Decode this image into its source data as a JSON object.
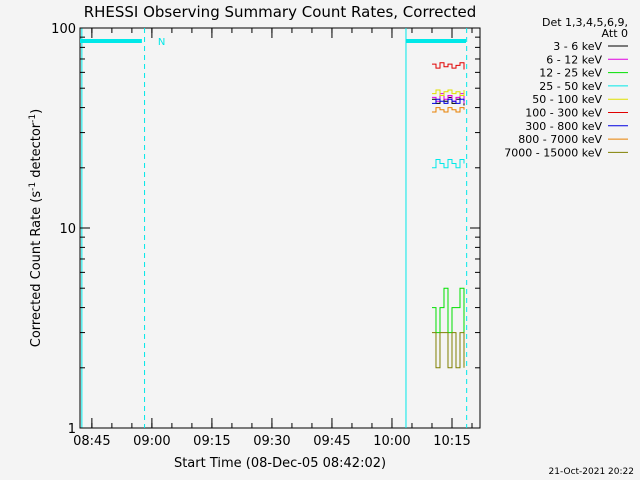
{
  "chart_data": {
    "type": "line",
    "title": "RHESSI Observing Summary Count Rates, Corrected",
    "xlabel": "Start Time (08-Dec-05 08:42:02)",
    "ylabel_main": "Corrected Count Rate (s",
    "ylabel_sup1": "-1",
    "ylabel_mid": " detector",
    "ylabel_sup2": "-1",
    "ylabel_end": ")",
    "yscale": "log",
    "ylim": [
      1,
      100
    ],
    "xlim": [
      "08:42:02",
      "10:22:00"
    ],
    "x_ticks": [
      "08:45",
      "09:00",
      "09:15",
      "09:30",
      "09:45",
      "10:00",
      "10:15"
    ],
    "y_ticks": [
      "1",
      "10",
      "100"
    ],
    "legend_header": [
      "Det 1,3,4,5,6,9,",
      "Att 0"
    ],
    "legend_position": "right",
    "series": [
      {
        "name": "3 - 6 keV",
        "color": "#000000",
        "x": [
          "10:10",
          "10:11",
          "10:12",
          "10:13",
          "10:14",
          "10:15",
          "10:16",
          "10:17",
          "10:18"
        ],
        "y": [
          44,
          42,
          46,
          43,
          45,
          42,
          44,
          46,
          41
        ]
      },
      {
        "name": "6 - 12 keV",
        "color": "#e000e0",
        "x": [
          "10:10",
          "10:11",
          "10:12",
          "10:13",
          "10:14",
          "10:15",
          "10:16",
          "10:17",
          "10:18"
        ],
        "y": [
          45,
          43,
          47,
          44,
          46,
          43,
          45,
          47,
          42
        ]
      },
      {
        "name": "12 - 25 keV",
        "color": "#00e000",
        "x": [
          "10:10",
          "10:11",
          "10:12",
          "10:13",
          "10:14",
          "10:15",
          "10:16",
          "10:17",
          "10:18"
        ],
        "y": [
          4,
          3,
          4,
          5,
          3,
          4,
          4,
          5,
          3
        ]
      },
      {
        "name": "25 - 50 keV",
        "color": "#00e8e8",
        "x": [
          "10:10",
          "10:11",
          "10:12",
          "10:13",
          "10:14",
          "10:15",
          "10:16",
          "10:17",
          "10:18"
        ],
        "y": [
          20,
          22,
          21,
          20,
          22,
          21,
          20,
          22,
          21
        ]
      },
      {
        "name": "50 - 100 keV",
        "color": "#e0e000",
        "x": [
          "10:10",
          "10:11",
          "10:12",
          "10:13",
          "10:14",
          "10:15",
          "10:16",
          "10:17",
          "10:18"
        ],
        "y": [
          47,
          49,
          46,
          48,
          49,
          47,
          48,
          46,
          49
        ]
      },
      {
        "name": "100 - 300 keV",
        "color": "#e00000",
        "x": [
          "10:10",
          "10:11",
          "10:12",
          "10:13",
          "10:14",
          "10:15",
          "10:16",
          "10:17",
          "10:18"
        ],
        "y": [
          66,
          63,
          67,
          64,
          66,
          63,
          65,
          67,
          62
        ]
      },
      {
        "name": "300 - 800 keV",
        "color": "#0000e0",
        "x": [
          "10:10",
          "10:11",
          "10:12",
          "10:13",
          "10:14",
          "10:15",
          "10:16",
          "10:17",
          "10:18"
        ],
        "y": [
          42,
          44,
          43,
          42,
          44,
          43,
          42,
          44,
          43
        ]
      },
      {
        "name": "800 - 7000 keV",
        "color": "#e88000",
        "x": [
          "10:10",
          "10:11",
          "10:12",
          "10:13",
          "10:14",
          "10:15",
          "10:16",
          "10:17",
          "10:18"
        ],
        "y": [
          38,
          40,
          39,
          38,
          40,
          39,
          38,
          40,
          39
        ]
      },
      {
        "name": "7000 - 15000 keV",
        "color": "#808000",
        "x": [
          "10:10",
          "10:11",
          "10:12",
          "10:13",
          "10:14",
          "10:15",
          "10:16",
          "10:17",
          "10:18"
        ],
        "y": [
          3,
          2,
          3,
          3,
          2,
          3,
          2,
          3,
          2
        ]
      }
    ],
    "annotations": [
      {
        "text": "N",
        "x": "08:59"
      }
    ],
    "timestamp": "21-Oct-2021 20:22",
    "colors": {
      "background": "#f4f4f4",
      "axis": "#000000",
      "bars": "#00e8e8"
    }
  }
}
